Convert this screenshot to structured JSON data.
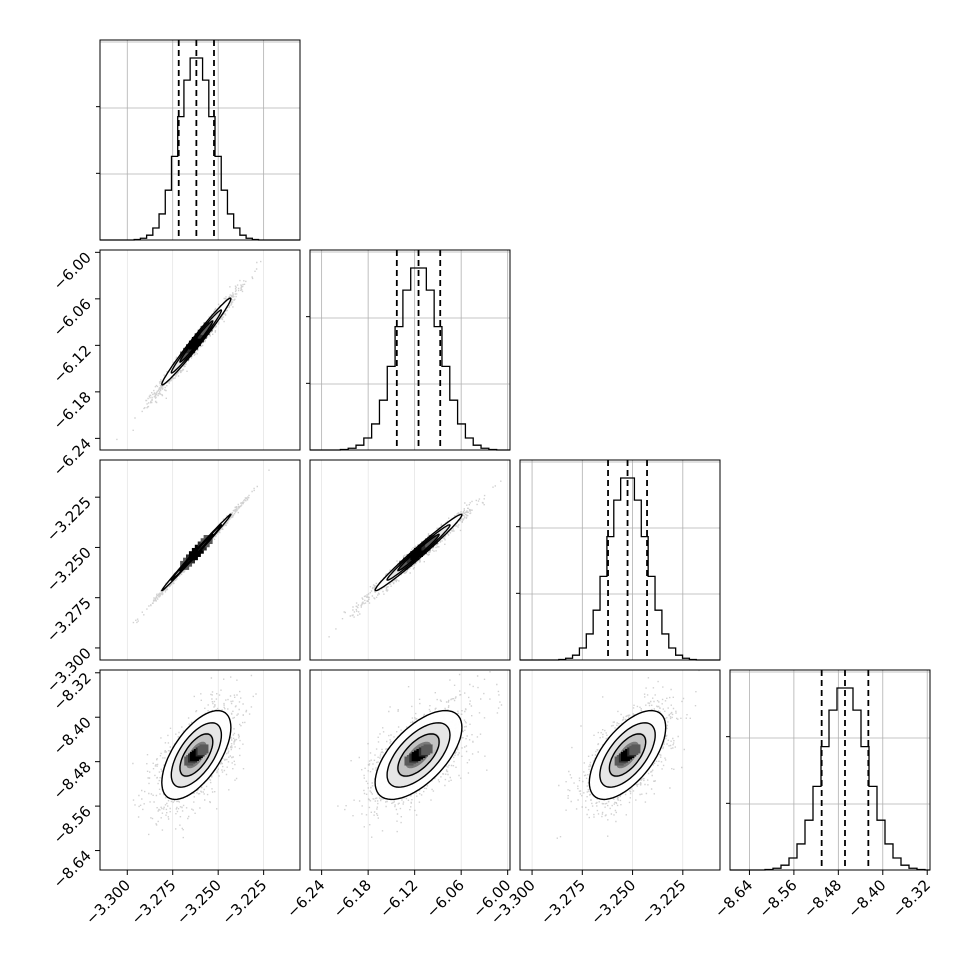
{
  "chart_data": {
    "type": "corner",
    "grid": true,
    "colors": {
      "hist": "#000000",
      "contour": "#000000",
      "scatter": "#9a9a9a",
      "grid": "#b0b0b0"
    },
    "params": [
      {
        "range": [
          -3.315,
          -3.205
        ],
        "ticks": [
          -3.3,
          -3.275,
          -3.25,
          -3.225
        ],
        "tick_labels": [
          "−3.300",
          "−3.275",
          "−3.250",
          "−3.225"
        ],
        "mean": -3.262,
        "sigma": 0.0095,
        "quantiles": [
          -3.2717,
          -3.262,
          -3.2523
        ]
      },
      {
        "range": [
          -6.255,
          -5.997
        ],
        "ticks": [
          -6.24,
          -6.18,
          -6.12,
          -6.06,
          -6.0
        ],
        "tick_labels": [
          "−6.24",
          "−6.18",
          "−6.12",
          "−6.06",
          "−6.00"
        ],
        "mean": -6.115,
        "sigma": 0.028,
        "quantiles": [
          -6.143,
          -6.115,
          -6.087
        ]
      },
      {
        "range": [
          -3.306,
          -3.2065
        ],
        "ticks": [
          -3.3,
          -3.275,
          -3.25,
          -3.225
        ],
        "tick_labels": [
          "−3.300",
          "−3.275",
          "−3.250",
          "−3.225"
        ],
        "mean": -3.2525,
        "sigma": 0.0095,
        "quantiles": [
          -3.2622,
          -3.2525,
          -3.2428
        ]
      },
      {
        "range": [
          -8.675,
          -8.315
        ],
        "ticks": [
          -8.64,
          -8.56,
          -8.48,
          -8.4,
          -8.32
        ],
        "tick_labels": [
          "−8.64",
          "−8.56",
          "−8.48",
          "−8.40",
          "−8.32"
        ],
        "mean": -8.468,
        "sigma": 0.04,
        "quantiles": [
          -8.51,
          -8.468,
          -8.426
        ]
      }
    ],
    "pairs": [
      {
        "x": 0,
        "y": 1,
        "rho": 0.985
      },
      {
        "x": 0,
        "y": 2,
        "rho": 0.997
      },
      {
        "x": 1,
        "y": 2,
        "rho": 0.985
      },
      {
        "x": 0,
        "y": 3,
        "rho": 0.62
      },
      {
        "x": 1,
        "y": 3,
        "rho": 0.62
      },
      {
        "x": 2,
        "y": 3,
        "rho": 0.62
      }
    ]
  }
}
